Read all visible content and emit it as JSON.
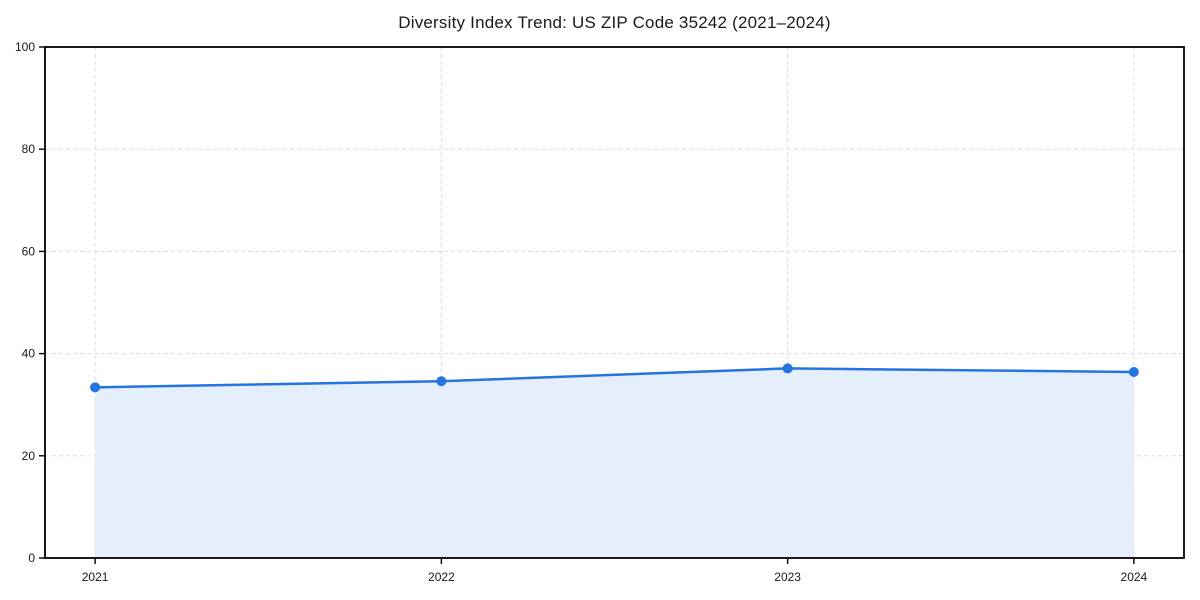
{
  "chart_data": {
    "type": "area",
    "title": "Diversity Index Trend: US ZIP Code 35242 (2021–2024)",
    "categories": [
      "2021",
      "2022",
      "2023",
      "2024"
    ],
    "values": [
      33.4,
      34.6,
      37.1,
      36.4
    ],
    "series_name": "Diversity Index",
    "xlabel": "",
    "ylabel": "",
    "ylim": [
      0,
      100
    ],
    "yticks": [
      0,
      20,
      40,
      60,
      80,
      100
    ],
    "grid": "dashed-both-axes",
    "legend": "none",
    "colors": {
      "line": "#2574e0",
      "marker": "#2574e0",
      "fill": "#e5eefb",
      "grid": "#dcdcdc",
      "spine": "#000000",
      "tick_label": "#1a1a1a",
      "background": "#ffffff"
    }
  }
}
